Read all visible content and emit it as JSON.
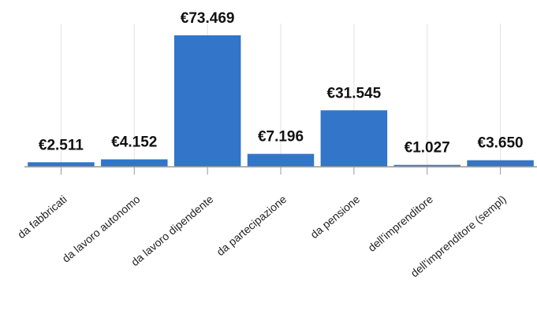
{
  "chart_data": {
    "type": "bar",
    "categories": [
      "da fabbricati",
      "da lavoro autonomo",
      "da lavoro dipendente",
      "da partecipazione",
      "da pensione",
      "dell'imprenditore",
      "dell'imprenditore (sempl)"
    ],
    "values": [
      2511,
      4152,
      73469,
      7196,
      31545,
      1027,
      3650
    ],
    "value_labels": [
      "€2.511",
      "€4.152",
      "€73.469",
      "€7.196",
      "€31.545",
      "€1.027",
      "€3.650"
    ],
    "color": "#3375c8",
    "ylim": [
      0,
      80000
    ],
    "grid": true
  }
}
